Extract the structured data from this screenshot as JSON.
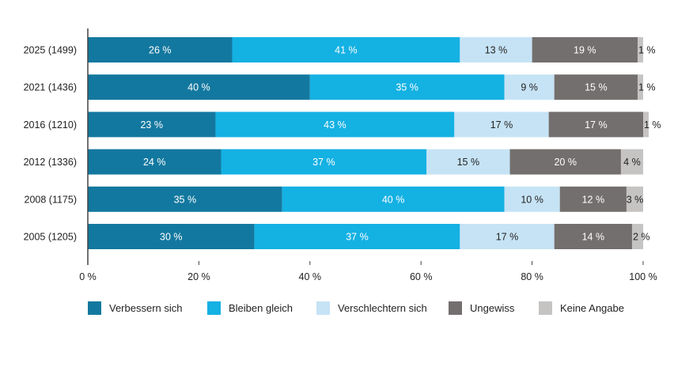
{
  "chart_data": {
    "type": "bar",
    "orientation": "horizontal",
    "stacked": true,
    "categories": [
      "2025 (1499)",
      "2021 (1436)",
      "2016 (1210)",
      "2012 (1336)",
      "2008 (1175)",
      "2005 (1205)"
    ],
    "series": [
      {
        "name": "Verbessern sich",
        "color": "#13789f",
        "values": [
          26,
          40,
          23,
          24,
          35,
          30
        ]
      },
      {
        "name": "Bleiben gleich",
        "color": "#14b1e3",
        "values": [
          41,
          35,
          43,
          37,
          40,
          37
        ]
      },
      {
        "name": "Verschlechtern sich",
        "color": "#c6e3f5",
        "values": [
          13,
          9,
          17,
          15,
          10,
          17
        ]
      },
      {
        "name": "Ungewiss",
        "color": "#736f6e",
        "values": [
          19,
          15,
          17,
          20,
          12,
          14
        ]
      },
      {
        "name": "Keine Angabe",
        "color": "#c6c4c3",
        "values": [
          1,
          1,
          1,
          4,
          3,
          2
        ]
      }
    ],
    "xlim": [
      0,
      100
    ],
    "xticks": [
      "0 %",
      "20 %",
      "40 %",
      "60 %",
      "80 %",
      "100 %"
    ],
    "value_suffix": " %",
    "grid": false,
    "legend_position": "bottom"
  }
}
